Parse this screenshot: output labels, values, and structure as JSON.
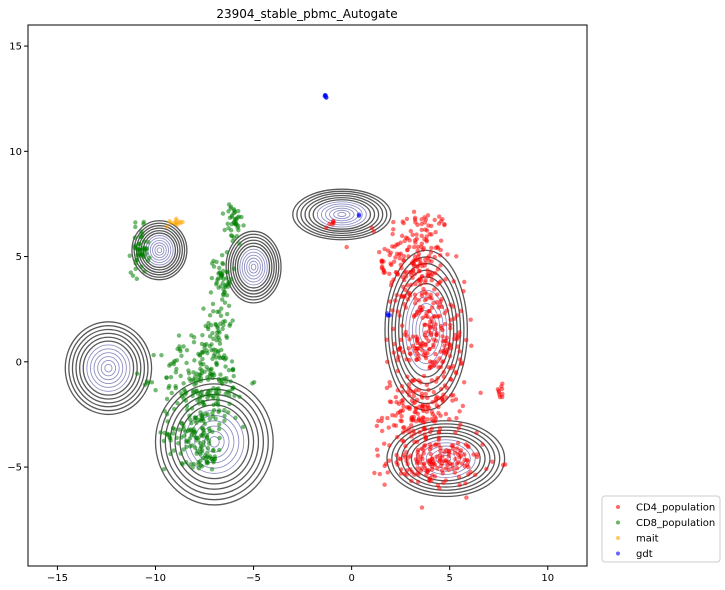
{
  "chart_data": {
    "type": "scatter",
    "title": "23904_stable_pbmc_Autogate",
    "xlabel": "",
    "ylabel": "",
    "xlim": [
      -16.5,
      12.0
    ],
    "ylim": [
      -9.7,
      16.0
    ],
    "x_ticks": [
      -15,
      -10,
      -5,
      0,
      5,
      10
    ],
    "y_ticks": [
      -5,
      0,
      5,
      10,
      15
    ],
    "grid": false,
    "legend_position": "outside lower-right",
    "contour_color": "#3b3b3b",
    "contour_inner_color": "#7b7bb8",
    "series": [
      {
        "name": "CD4_population",
        "color": "#ff0000",
        "clusters": [
          {
            "cx": 3.3,
            "cy": 4.8,
            "rx": 1.6,
            "ry": 2.5,
            "n": 200
          },
          {
            "cx": 4.0,
            "cy": 1.0,
            "rx": 1.6,
            "ry": 2.2,
            "n": 200
          },
          {
            "cx": 3.6,
            "cy": -2.5,
            "rx": 1.8,
            "ry": 1.4,
            "n": 160
          },
          {
            "cx": 4.2,
            "cy": -4.8,
            "rx": 2.2,
            "ry": 1.0,
            "n": 160
          },
          {
            "cx": 7.6,
            "cy": -1.4,
            "rx": 0.2,
            "ry": 0.3,
            "n": 10
          },
          {
            "cx": 1.6,
            "cy": 4.5,
            "rx": 0.2,
            "ry": 0.3,
            "n": 8
          },
          {
            "cx": -1.0,
            "cy": 6.6,
            "rx": 0.3,
            "ry": 0.2,
            "n": 6
          }
        ]
      },
      {
        "name": "CD8_population",
        "color": "#008000",
        "clusters": [
          {
            "cx": -10.8,
            "cy": 5.3,
            "rx": 0.4,
            "ry": 1.0,
            "n": 50
          },
          {
            "cx": -6.0,
            "cy": 6.5,
            "rx": 0.4,
            "ry": 1.0,
            "n": 40
          },
          {
            "cx": -6.6,
            "cy": 4.0,
            "rx": 0.5,
            "ry": 1.2,
            "n": 50
          },
          {
            "cx": -6.8,
            "cy": 1.8,
            "rx": 0.6,
            "ry": 1.0,
            "n": 40
          },
          {
            "cx": -7.5,
            "cy": -0.8,
            "rx": 2.0,
            "ry": 1.8,
            "n": 200
          },
          {
            "cx": -8.0,
            "cy": -3.4,
            "rx": 1.4,
            "ry": 1.3,
            "n": 120
          },
          {
            "cx": -7.3,
            "cy": -4.6,
            "rx": 0.5,
            "ry": 0.4,
            "n": 20
          }
        ]
      },
      {
        "name": "mait",
        "color": "#ffa500",
        "clusters": [
          {
            "cx": -8.9,
            "cy": 6.6,
            "rx": 0.3,
            "ry": 0.15,
            "n": 12
          }
        ]
      },
      {
        "name": "gdt",
        "color": "#0000ff",
        "clusters": [
          {
            "cx": -1.3,
            "cy": 12.6,
            "rx": 0.1,
            "ry": 0.1,
            "n": 6
          },
          {
            "cx": 1.9,
            "cy": 2.3,
            "rx": 0.1,
            "ry": 0.15,
            "n": 4
          },
          {
            "cx": 0.4,
            "cy": 7.0,
            "rx": 0.1,
            "ry": 0.1,
            "n": 2
          }
        ]
      }
    ],
    "density_centers": [
      {
        "cx": -12.4,
        "cy": -0.3,
        "sx": 2.2,
        "sy": 2.2,
        "w": 0.9
      },
      {
        "cx": -9.8,
        "cy": 5.3,
        "sx": 1.4,
        "sy": 1.4,
        "w": 0.6
      },
      {
        "cx": -5.0,
        "cy": 4.5,
        "sx": 1.4,
        "sy": 1.7,
        "w": 0.6
      },
      {
        "cx": -7.0,
        "cy": -3.8,
        "sx": 3.0,
        "sy": 3.0,
        "w": 1.3
      },
      {
        "cx": -0.5,
        "cy": 7.0,
        "sx": 2.5,
        "sy": 1.2,
        "w": 0.8
      },
      {
        "cx": 3.8,
        "cy": 1.5,
        "sx": 2.1,
        "sy": 3.8,
        "w": 1.1
      },
      {
        "cx": 4.8,
        "cy": -4.6,
        "sx": 3.0,
        "sy": 1.8,
        "w": 1.2
      }
    ]
  }
}
